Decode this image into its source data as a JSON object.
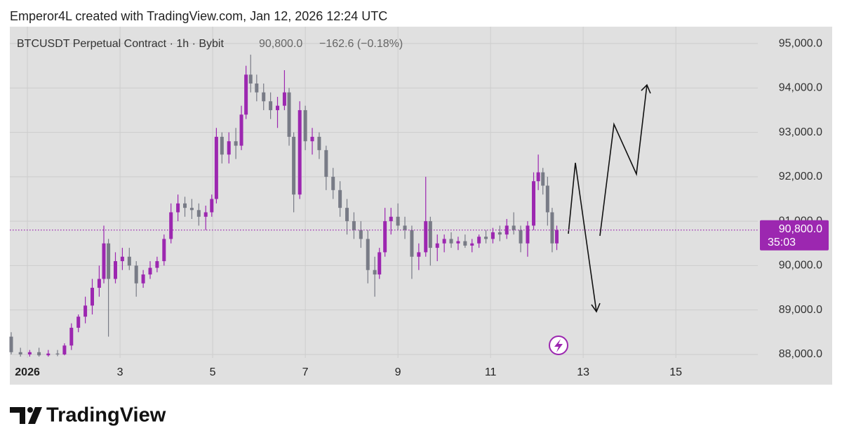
{
  "header": {
    "credit": "Emperor4L created with TradingView.com, Jan 12, 2026 12:24 UTC"
  },
  "chart_data": {
    "type": "candlestick",
    "title": "BTCUSDT Perpetual Contract · 1h · Bybit",
    "last_price": 90800,
    "last_price_label": "90,800.0",
    "change": "−162.6 (−0.18%)",
    "countdown": "35:03",
    "up_color": "#9c27b0",
    "down_color": "#787b86",
    "price_line_color": "#9c27b0",
    "grid": true,
    "xlim": [
      0.62,
      16.77
    ],
    "xticks": [
      {
        "value": 1,
        "label": "2026"
      },
      3,
      5,
      7,
      9,
      11,
      13,
      15
    ],
    "ylim": [
      87920,
      95380
    ],
    "yticks": [
      {
        "value": 88000,
        "label": "88,000.0"
      },
      {
        "value": 89000,
        "label": "89,000.0"
      },
      {
        "value": 90000,
        "label": "90,000.0"
      },
      {
        "value": 91000,
        "label": "91,000.0"
      },
      {
        "value": 92000,
        "label": "92,000.0"
      },
      {
        "value": 93000,
        "label": "93,000.0"
      },
      {
        "value": 94000,
        "label": "94,000.0"
      },
      {
        "value": 95000,
        "label": "95,000.0"
      }
    ],
    "x": [
      0.65,
      0.85,
      1.05,
      1.25,
      1.45,
      1.65,
      1.8,
      1.95,
      2.1,
      2.25,
      2.4,
      2.55,
      2.65,
      2.75,
      2.9,
      3.05,
      3.2,
      3.35,
      3.5,
      3.65,
      3.8,
      3.95,
      4.1,
      4.25,
      4.4,
      4.55,
      4.7,
      4.85,
      4.98,
      5.08,
      5.2,
      5.35,
      5.5,
      5.62,
      5.72,
      5.82,
      5.95,
      6.1,
      6.25,
      6.4,
      6.55,
      6.65,
      6.75,
      6.88,
      7.0,
      7.15,
      7.3,
      7.45,
      7.6,
      7.75,
      7.9,
      8.05,
      8.2,
      8.35,
      8.5,
      8.6,
      8.72,
      8.85,
      9.0,
      9.15,
      9.3,
      9.45,
      9.6,
      9.7,
      9.85,
      10.0,
      10.15,
      10.3,
      10.45,
      10.6,
      10.75,
      10.9,
      11.05,
      11.2,
      11.35,
      11.5,
      11.65,
      11.8,
      11.93,
      12.03,
      12.13,
      12.23,
      12.33,
      12.43
    ],
    "open": [
      88400,
      88050,
      88000,
      88050,
      87980,
      88020,
      88000,
      88200,
      88600,
      88850,
      89100,
      89500,
      89700,
      90500,
      89700,
      90100,
      90200,
      90000,
      89600,
      89800,
      89950,
      90100,
      90600,
      91200,
      91400,
      91300,
      91250,
      91100,
      91200,
      91500,
      92900,
      92500,
      92800,
      92700,
      93400,
      94300,
      94100,
      93900,
      93700,
      93500,
      93600,
      93900,
      92900,
      91600,
      93500,
      92800,
      92900,
      92600,
      92000,
      91700,
      91300,
      91000,
      90800,
      90600,
      89900,
      89800,
      90300,
      91000,
      91100,
      90900,
      90800,
      90200,
      90300,
      91000,
      90400,
      90500,
      90600,
      90500,
      90550,
      90450,
      90500,
      90650,
      90600,
      90750,
      90700,
      90900,
      90800,
      90500,
      90900,
      91900,
      92100,
      91800,
      91200,
      90500
    ],
    "high": [
      88500,
      88150,
      88100,
      88150,
      88100,
      88100,
      88250,
      88700,
      88900,
      89300,
      89700,
      90000,
      90900,
      90600,
      90300,
      90400,
      90400,
      90100,
      89900,
      90100,
      90200,
      90700,
      91400,
      91600,
      91550,
      91500,
      91400,
      91350,
      91600,
      93100,
      93000,
      93000,
      93100,
      93600,
      94500,
      94750,
      94300,
      94100,
      93900,
      93800,
      94400,
      94000,
      93000,
      93700,
      93600,
      93100,
      93000,
      92700,
      92200,
      91900,
      91500,
      91200,
      91000,
      90800,
      90200,
      90400,
      91300,
      91300,
      91400,
      91100,
      90900,
      90500,
      92000,
      91100,
      90700,
      90700,
      90750,
      90650,
      90700,
      90600,
      90700,
      90800,
      90850,
      90900,
      91050,
      91200,
      90900,
      91000,
      92100,
      92500,
      92200,
      92000,
      91300,
      90900
    ],
    "low": [
      88000,
      87950,
      87950,
      87950,
      87950,
      87960,
      87980,
      88100,
      88500,
      88700,
      88900,
      89300,
      89600,
      88400,
      89600,
      89900,
      89900,
      89300,
      89500,
      89700,
      89850,
      90000,
      90500,
      91000,
      91100,
      91050,
      90900,
      90800,
      91100,
      91400,
      92300,
      92300,
      92400,
      92600,
      93300,
      93900,
      93700,
      93500,
      93300,
      93100,
      93500,
      92700,
      91200,
      91500,
      92600,
      92500,
      92400,
      91700,
      91500,
      91100,
      90700,
      90600,
      90400,
      89600,
      89300,
      89700,
      90200,
      90700,
      90800,
      90600,
      89700,
      89900,
      90200,
      90000,
      90100,
      90300,
      90400,
      90350,
      90400,
      90300,
      90400,
      90500,
      90500,
      90550,
      90600,
      90700,
      90300,
      90200,
      90800,
      91700,
      91600,
      90900,
      90300,
      90350
    ],
    "close": [
      88050,
      88000,
      88050,
      87980,
      88020,
      88000,
      88200,
      88600,
      88850,
      89100,
      89500,
      89700,
      90500,
      89700,
      90100,
      90200,
      90000,
      89600,
      89800,
      89950,
      90100,
      90600,
      91200,
      91400,
      91300,
      91250,
      91100,
      91200,
      91500,
      92900,
      92500,
      92800,
      92700,
      93400,
      94300,
      94100,
      93900,
      93700,
      93500,
      93600,
      93900,
      92900,
      91600,
      93500,
      92800,
      92900,
      92600,
      92000,
      91700,
      91300,
      91000,
      90800,
      90600,
      89900,
      89800,
      90300,
      91000,
      91100,
      90900,
      90800,
      90200,
      90300,
      91000,
      90400,
      90500,
      90600,
      90500,
      90550,
      90450,
      90500,
      90650,
      90600,
      90750,
      90700,
      90900,
      90800,
      90500,
      90900,
      91900,
      92100,
      91800,
      91200,
      90500,
      90800
    ]
  },
  "footer": {
    "brand": "TradingView"
  }
}
